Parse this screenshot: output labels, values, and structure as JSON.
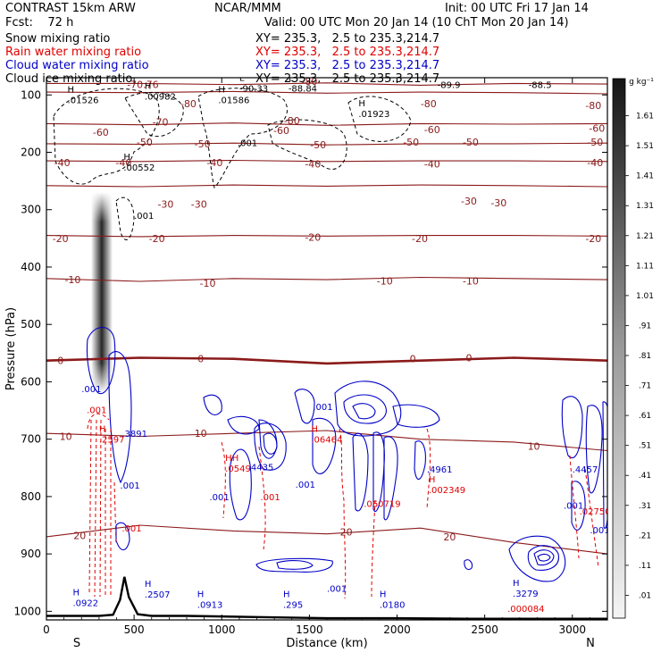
{
  "header": {
    "model": "CONTRAST 15km ARW",
    "center": "NCAR/MMM",
    "init": "Init: 00 UTC Fri 17 Jan 14",
    "fcst": "Fcst:    72 h",
    "valid": "Valid: 00 UTC Mon 20 Jan 14 (10 ChT Mon 20 Jan 14)",
    "fields": [
      {
        "name": "Snow mixing ratio",
        "xy": "XY= 235.3,   2.5 to 235.3,214.7",
        "color": "#000000"
      },
      {
        "name": "Rain water mixing ratio",
        "xy": "XY= 235.3,   2.5 to 235.3,214.7",
        "color": "#e00000"
      },
      {
        "name": "Cloud water mixing ratio",
        "xy": "XY= 235.3,   2.5 to 235.3,214.7",
        "color": "#0000c8"
      },
      {
        "name": "Cloud ice mixing ratio",
        "xy": "XY= 235.3,   2.5 to 235.3,214.7",
        "color": "#000000"
      }
    ]
  },
  "chart_data": {
    "type": "heatmap",
    "xlabel": "Distance (km)",
    "ylabel": "Pressure (hPa)",
    "xlim": [
      0,
      3200
    ],
    "ylim": [
      70,
      1015
    ],
    "x_ticks": [
      "0",
      "500",
      "1000",
      "1500",
      "2000",
      "2500",
      "3000"
    ],
    "y_ticks": [
      "100",
      "200",
      "300",
      "400",
      "500",
      "600",
      "700",
      "800",
      "900",
      "1000"
    ],
    "x_end_labels": {
      "left": "S",
      "right": "N"
    },
    "colorbar": {
      "unit": "g kg⁻¹",
      "labels": [
        ".01",
        ".11",
        ".21",
        ".31",
        ".41",
        ".51",
        ".61",
        ".71",
        ".81",
        ".91",
        "1.01",
        "1.11",
        "1.21",
        "1.31",
        "1.41",
        "1.51",
        "1.61"
      ]
    },
    "temperature_contours": [
      {
        "level": -80,
        "p": [
          80,
          80,
          82,
          79,
          83,
          80,
          81
        ]
      },
      {
        "level": -70,
        "p": [
          95,
          96,
          94,
          97,
          95,
          96,
          98
        ]
      },
      {
        "level": -60,
        "p": [
          150,
          152,
          149,
          153,
          150,
          151,
          150
        ]
      },
      {
        "level": -50,
        "p": [
          185,
          186,
          184,
          187,
          185,
          185,
          184
        ]
      },
      {
        "level": -40,
        "p": [
          215,
          216,
          214,
          216,
          215,
          215,
          216
        ]
      },
      {
        "level": -30,
        "p": [
          258,
          260,
          257,
          259,
          257,
          258,
          260
        ]
      },
      {
        "level": -20,
        "p": [
          345,
          347,
          345,
          346,
          345,
          345,
          346
        ]
      },
      {
        "level": -10,
        "p": [
          420,
          425,
          420,
          422,
          418,
          420,
          422
        ]
      },
      {
        "level": 0,
        "p": [
          563,
          558,
          560,
          568,
          563,
          558,
          563
        ]
      },
      {
        "level": 10,
        "p": [
          690,
          695,
          690,
          685,
          700,
          705,
          720
        ]
      },
      {
        "level": 20,
        "p": [
          870,
          850,
          860,
          865,
          855,
          880,
          900
        ]
      }
    ],
    "temp_labels": [
      {
        "x": 550,
        "p": 82,
        "text": "-70.76"
      },
      {
        "x": 1500,
        "p": 76,
        "text": "-80"
      },
      {
        "x": 810,
        "p": 115,
        "text": "-80"
      },
      {
        "x": 1400,
        "p": 145,
        "text": "-80"
      },
      {
        "x": 2180,
        "p": 115,
        "text": "-80"
      },
      {
        "x": 3120,
        "p": 118,
        "text": "-80"
      },
      {
        "x": 650,
        "p": 147,
        "text": "-70"
      },
      {
        "x": 310,
        "p": 165,
        "text": "-60"
      },
      {
        "x": 1340,
        "p": 162,
        "text": "-60"
      },
      {
        "x": 2200,
        "p": 160,
        "text": "-60"
      },
      {
        "x": 3140,
        "p": 158,
        "text": "-60"
      },
      {
        "x": 560,
        "p": 182,
        "text": "-50"
      },
      {
        "x": 890,
        "p": 185,
        "text": "-50"
      },
      {
        "x": 1550,
        "p": 187,
        "text": "-50"
      },
      {
        "x": 2080,
        "p": 182,
        "text": "-50"
      },
      {
        "x": 2420,
        "p": 182,
        "text": "-50"
      },
      {
        "x": 3130,
        "p": 182,
        "text": "-50"
      },
      {
        "x": 90,
        "p": 218,
        "text": "-40"
      },
      {
        "x": 440,
        "p": 218,
        "text": "-40"
      },
      {
        "x": 960,
        "p": 218,
        "text": "-40"
      },
      {
        "x": 1520,
        "p": 220,
        "text": "-40"
      },
      {
        "x": 2200,
        "p": 220,
        "text": "-40"
      },
      {
        "x": 3130,
        "p": 218,
        "text": "-40"
      },
      {
        "x": 680,
        "p": 290,
        "text": "-30"
      },
      {
        "x": 870,
        "p": 290,
        "text": "-30"
      },
      {
        "x": 2410,
        "p": 285,
        "text": "-30"
      },
      {
        "x": 2580,
        "p": 288,
        "text": "-30"
      },
      {
        "x": 80,
        "p": 350,
        "text": "-20"
      },
      {
        "x": 630,
        "p": 350,
        "text": "-20"
      },
      {
        "x": 1520,
        "p": 348,
        "text": "-20"
      },
      {
        "x": 2130,
        "p": 350,
        "text": "-20"
      },
      {
        "x": 3120,
        "p": 350,
        "text": "-20"
      },
      {
        "x": 150,
        "p": 422,
        "text": "-10"
      },
      {
        "x": 920,
        "p": 428,
        "text": "-10"
      },
      {
        "x": 1930,
        "p": 424,
        "text": "-10"
      },
      {
        "x": 2420,
        "p": 424,
        "text": "-10"
      },
      {
        "x": 80,
        "p": 563,
        "text": "0"
      },
      {
        "x": 880,
        "p": 560,
        "text": "0"
      },
      {
        "x": 2090,
        "p": 560,
        "text": "0"
      },
      {
        "x": 2410,
        "p": 558,
        "text": "0"
      },
      {
        "x": 110,
        "p": 695,
        "text": "10"
      },
      {
        "x": 880,
        "p": 690,
        "text": "10"
      },
      {
        "x": 2780,
        "p": 712,
        "text": "10"
      },
      {
        "x": 190,
        "p": 868,
        "text": "20"
      },
      {
        "x": 1710,
        "p": 862,
        "text": "20"
      },
      {
        "x": 2300,
        "p": 870,
        "text": "20"
      }
    ],
    "value_labels": [
      {
        "x": 120,
        "p": 108,
        "mark": "H",
        "text": ".01526",
        "color": "#000000"
      },
      {
        "x": 560,
        "p": 102,
        "mark": "H",
        "text": ".00982",
        "color": "#000000"
      },
      {
        "x": 980,
        "p": 108,
        "mark": "H",
        "text": ".01586",
        "color": "#000000"
      },
      {
        "x": 1100,
        "p": 88,
        "mark": "L",
        "text": "-90.33",
        "color": "#000000"
      },
      {
        "x": 1380,
        "p": 88,
        "mark": "L",
        "text": "-88.84",
        "color": "#000000"
      },
      {
        "x": 1780,
        "p": 132,
        "mark": "H",
        "text": ".01923",
        "color": "#000000"
      },
      {
        "x": 2230,
        "p": 82,
        "mark": "L",
        "text": "-89.9",
        "color": "#000000"
      },
      {
        "x": 2750,
        "p": 82,
        "mark": "L",
        "text": "-88.5",
        "color": "#000000"
      },
      {
        "x": 1090,
        "p": 183,
        "mark": "",
        "text": ".001",
        "color": "#000000"
      },
      {
        "x": 440,
        "p": 226,
        "mark": "H",
        "text": ".00552",
        "color": "#000000"
      },
      {
        "x": 500,
        "p": 310,
        "mark": "",
        "text": ".001",
        "color": "#000000"
      },
      {
        "x": 200,
        "p": 612,
        "mark": "",
        "text": ".001",
        "color": "#0000c8"
      },
      {
        "x": 230,
        "p": 648,
        "mark": "",
        "text": ".001",
        "color": "#e00000"
      },
      {
        "x": 300,
        "p": 700,
        "mark": "H",
        "text": ".2597",
        "color": "#e00000"
      },
      {
        "x": 430,
        "p": 690,
        "mark": "",
        "text": ".3891",
        "color": "#0000c8"
      },
      {
        "x": 420,
        "p": 780,
        "mark": "",
        "text": ".001",
        "color": "#0000c8"
      },
      {
        "x": 430,
        "p": 855,
        "mark": "",
        "text": ".001",
        "color": "#e00000"
      },
      {
        "x": 1020,
        "p": 750,
        "mark": "HH",
        "text": ".0549",
        "color": "#e00000"
      },
      {
        "x": 1150,
        "p": 748,
        "mark": "",
        "text": ".4435",
        "color": "#0000c8"
      },
      {
        "x": 1520,
        "p": 643,
        "mark": "",
        "text": ".001",
        "color": "#0000c8"
      },
      {
        "x": 1510,
        "p": 700,
        "mark": "H",
        "text": ".06464",
        "color": "#e00000"
      },
      {
        "x": 1420,
        "p": 778,
        "mark": "",
        "text": ".001",
        "color": "#0000c8"
      },
      {
        "x": 1220,
        "p": 800,
        "mark": "",
        "text": ".001",
        "color": "#e00000"
      },
      {
        "x": 930,
        "p": 800,
        "mark": "",
        "text": ".001",
        "color": "#0000c8"
      },
      {
        "x": 1810,
        "p": 812,
        "mark": "",
        "text": ".060719",
        "color": "#e00000"
      },
      {
        "x": 2170,
        "p": 752,
        "mark": "",
        "text": ".4961",
        "color": "#0000c8"
      },
      {
        "x": 2180,
        "p": 788,
        "mark": "H",
        "text": ".002349",
        "color": "#e00000"
      },
      {
        "x": 3000,
        "p": 752,
        "mark": "",
        "text": ".4457",
        "color": "#0000c8"
      },
      {
        "x": 2950,
        "p": 815,
        "mark": "",
        "text": ".001",
        "color": "#0000c8"
      },
      {
        "x": 3040,
        "p": 825,
        "mark": "",
        "text": ".02750",
        "color": "#e00000"
      },
      {
        "x": 3100,
        "p": 858,
        "mark": "",
        "text": ".001",
        "color": "#0000c8"
      },
      {
        "x": 150,
        "p": 985,
        "mark": "H",
        "text": ".0922",
        "color": "#0000c8"
      },
      {
        "x": 560,
        "p": 970,
        "mark": "H",
        "text": ".2507",
        "color": "#0000c8"
      },
      {
        "x": 860,
        "p": 988,
        "mark": "H",
        "text": ".0913",
        "color": "#0000c8"
      },
      {
        "x": 1350,
        "p": 988,
        "mark": "H",
        "text": ".295",
        "color": "#0000c8"
      },
      {
        "x": 1600,
        "p": 960,
        "mark": "",
        "text": ".001",
        "color": "#0000c8"
      },
      {
        "x": 1900,
        "p": 988,
        "mark": "H",
        "text": ".0180",
        "color": "#0000c8"
      },
      {
        "x": 2660,
        "p": 968,
        "mark": "H",
        "text": ".3279",
        "color": "#0000c8"
      },
      {
        "x": 2630,
        "p": 995,
        "mark": "",
        "text": ".000084",
        "color": "#e00000"
      }
    ],
    "terrain": {
      "x": [
        0,
        300,
        380,
        420,
        445,
        470,
        520,
        600,
        800,
        1200,
        1600,
        2000,
        2400,
        2800,
        3200
      ],
      "p": [
        1008,
        1008,
        1006,
        980,
        940,
        975,
        1005,
        1008,
        1008,
        1010,
        1012,
        1012,
        1013,
        1013,
        1013
      ]
    }
  },
  "colors": {
    "temperature": "#8b1a1a",
    "freezing": "#8b1a1a",
    "rain": "#e00000",
    "cloud_water": "#0000c8",
    "snow_ice": "#000000"
  }
}
